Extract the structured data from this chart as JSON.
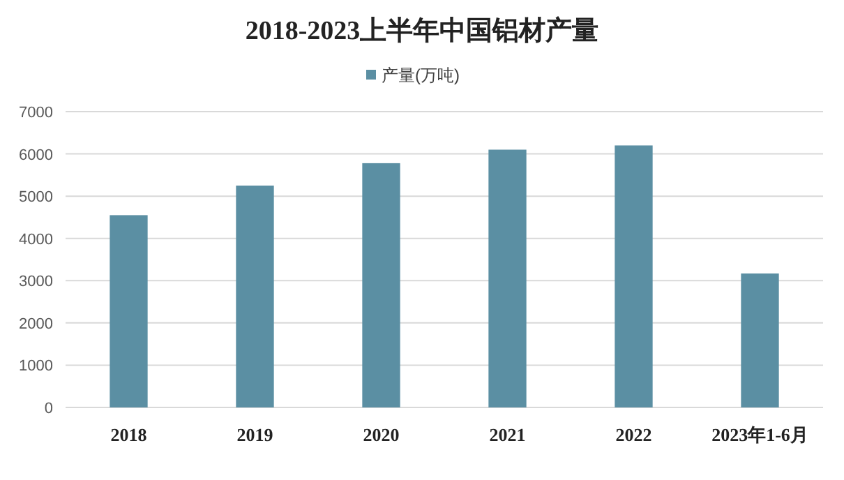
{
  "chart_data": {
    "type": "bar",
    "title": "2018-2023上半年中国铝材产量",
    "categories": [
      "2018",
      "2019",
      "2020",
      "2021",
      "2022",
      "2023年1-6月"
    ],
    "series": [
      {
        "name": "产量(万吨)",
        "color": "#5b8fa3",
        "values": [
          4550,
          5250,
          5780,
          6100,
          6200,
          3170
        ]
      }
    ],
    "ylim": [
      0,
      7000
    ],
    "yticks": [
      0,
      1000,
      2000,
      3000,
      4000,
      5000,
      6000,
      7000
    ],
    "grid": "y",
    "legend": "top"
  }
}
